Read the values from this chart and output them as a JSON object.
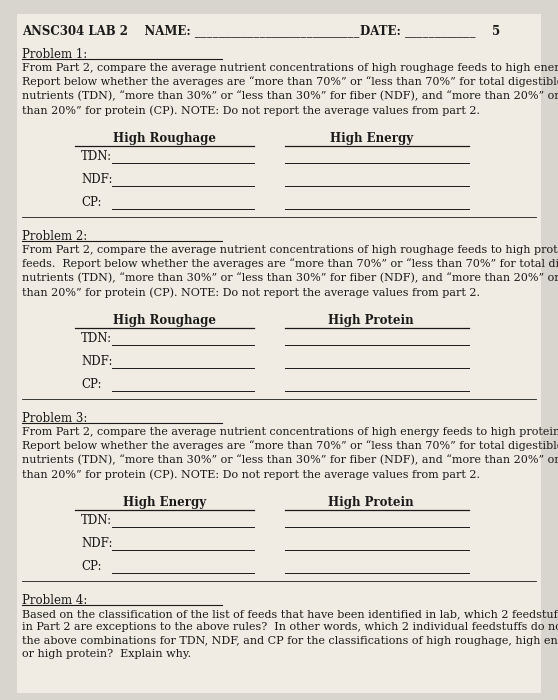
{
  "bg_color": "#d8d4ce",
  "paper_color": "#f0ece4",
  "text_color": "#1a1a1a",
  "p1_col1": "High Roughage",
  "p1_col2": "High Energy",
  "p2_col1": "High Roughage",
  "p2_col2": "High Protein",
  "p3_col1": "High Energy",
  "p3_col2": "High Protein",
  "rows": [
    "TDN:",
    "NDF:",
    "CP:"
  ],
  "font_size_body": 8.0,
  "font_size_header": 8.5
}
